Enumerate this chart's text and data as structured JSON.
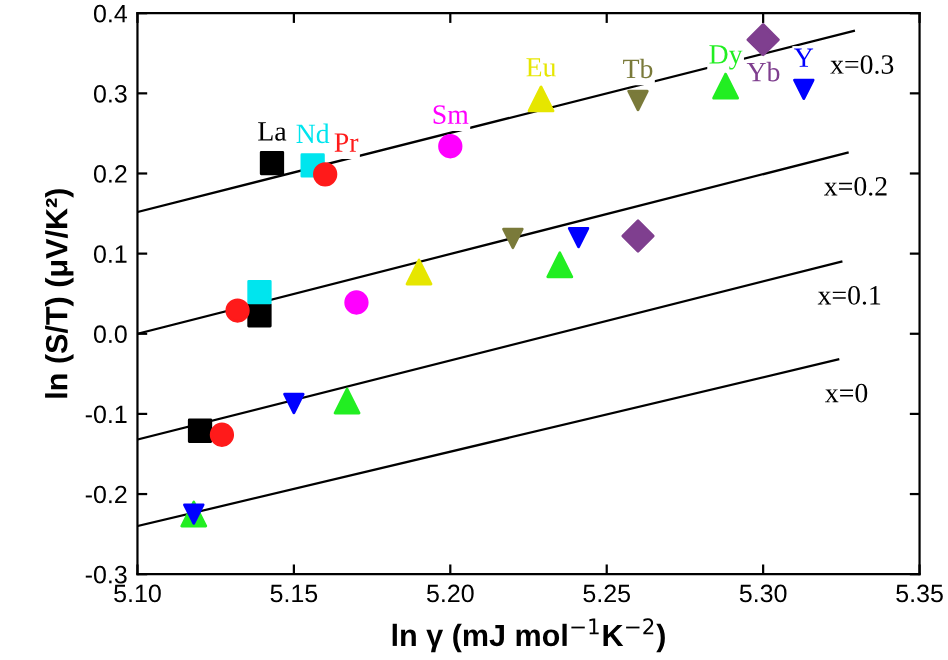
{
  "chart_data": {
    "type": "scatter",
    "xlabel": "ln γ (mJ mol$^{−1}$K$^{−2}$)",
    "ylabel": "ln (S/T) (μV/K²)",
    "xlim": [
      5.1,
      5.35
    ],
    "xticks": [
      {
        "value": 5.1,
        "label": "5.10"
      },
      {
        "value": 5.15,
        "label": "5.15"
      },
      {
        "value": 5.2,
        "label": "5.20"
      },
      {
        "value": 5.25,
        "label": "5.25"
      },
      {
        "value": 5.3,
        "label": "5.30"
      },
      {
        "value": 5.35,
        "label": "5.35"
      }
    ],
    "ylim": [
      -0.3,
      0.4
    ],
    "yticks": [
      -0.3,
      -0.2,
      -0.1,
      {
        "value": 0.0,
        "label": "0.0"
      },
      0.1,
      0.2,
      0.3,
      0.4
    ],
    "grid": false,
    "series": [
      {
        "type": "line",
        "name": "x=0.3",
        "color": "#000000",
        "x": [
          5.1,
          5.329
        ],
        "values": [
          0.152,
          0.378
        ]
      },
      {
        "type": "line",
        "name": "x=0.2",
        "color": "#000000",
        "x": [
          5.1,
          5.327
        ],
        "values": [
          0.0,
          0.226
        ]
      },
      {
        "type": "line",
        "name": "x=0.1",
        "color": "#000000",
        "x": [
          5.1,
          5.325
        ],
        "values": [
          -0.132,
          0.09
        ]
      },
      {
        "type": "line",
        "name": "x=0",
        "color": "#000000",
        "x": [
          5.1,
          5.324
        ],
        "values": [
          -0.24,
          -0.032
        ]
      },
      {
        "name": "La",
        "color": "#000000",
        "marker": "square",
        "x": [
          5.143,
          5.139,
          5.12
        ],
        "values": [
          0.213,
          0.023,
          -0.121
        ]
      },
      {
        "name": "Nd",
        "color": "#00e5ee",
        "marker": "square",
        "x": [
          5.156,
          5.139
        ],
        "values": [
          0.21,
          0.052
        ]
      },
      {
        "name": "Pr",
        "color": "#ff1a1a",
        "marker": "circle",
        "x": [
          5.16,
          5.132,
          5.127
        ],
        "values": [
          0.199,
          0.029,
          -0.126
        ]
      },
      {
        "name": "Sm",
        "color": "#ff00ff",
        "marker": "circle",
        "x": [
          5.2,
          5.17
        ],
        "values": [
          0.234,
          0.039
        ]
      },
      {
        "name": "Eu",
        "color": "#e6e600",
        "marker": "triangle",
        "x": [
          5.229,
          5.19
        ],
        "values": [
          0.293,
          0.077
        ]
      },
      {
        "name": "Tb",
        "color": "#7a7a3a",
        "marker": "triangle_down",
        "x": [
          5.26,
          5.22
        ],
        "values": [
          0.291,
          0.119
        ]
      },
      {
        "name": "Dy",
        "color": "#22ee22",
        "marker": "triangle",
        "x": [
          5.288,
          5.235,
          5.167,
          5.118
        ],
        "values": [
          0.309,
          0.086,
          -0.084,
          -0.225
        ]
      },
      {
        "name": "Yb",
        "color": "#7f3f8f",
        "marker": "diamond",
        "x": [
          5.3,
          5.26
        ],
        "values": [
          0.367,
          0.122
        ]
      },
      {
        "name": "Y",
        "color": "#0000ff",
        "marker": "triangle_down",
        "x": [
          5.313,
          5.241,
          5.15,
          5.118
        ],
        "values": [
          0.305,
          0.12,
          -0.087,
          -0.225
        ]
      }
    ]
  }
}
